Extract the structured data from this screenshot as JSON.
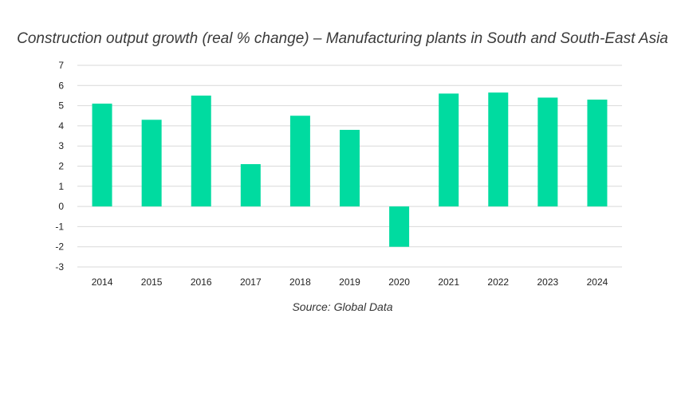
{
  "chart_data": {
    "type": "bar",
    "title": "Construction output growth (real % change) – Manufacturing plants in South and South-East Asia",
    "source": "Source: Global Data",
    "categories": [
      "2014",
      "2015",
      "2016",
      "2017",
      "2018",
      "2019",
      "2020",
      "2021",
      "2022",
      "2023",
      "2024"
    ],
    "values": [
      5.1,
      4.3,
      5.5,
      2.1,
      4.5,
      3.8,
      -2.0,
      5.6,
      5.65,
      5.4,
      5.3
    ],
    "ylim": [
      -3,
      7
    ],
    "yticks": [
      "-3",
      "-2",
      "-1",
      "0",
      "1",
      "2",
      "3",
      "4",
      "5",
      "6",
      "7"
    ],
    "xlabel": "",
    "ylabel": "",
    "grid": true,
    "legend": "none",
    "bar_color": "#00DBA0",
    "grid_color": "#D9D9D9"
  }
}
